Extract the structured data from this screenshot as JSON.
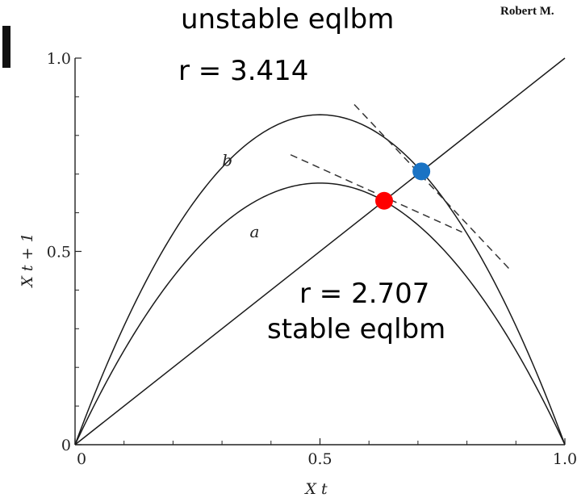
{
  "header": {
    "credit": "Robert M.",
    "annotation_unstable_label": "unstable eqlbm",
    "annotation_unstable_r": "r = 3.414",
    "annotation_stable_r": "r = 2.707",
    "annotation_stable_label": "stable eqlbm"
  },
  "chart_data": {
    "type": "line",
    "title": "",
    "xlabel": "X t",
    "ylabel": "X t + 1",
    "xlim": [
      0,
      1
    ],
    "ylim": [
      0,
      1
    ],
    "x_ticks": [
      {
        "value": 0,
        "label": "0"
      },
      {
        "value": 0.5,
        "label": "0.5"
      },
      {
        "value": 1,
        "label": "1.0"
      }
    ],
    "y_ticks": [
      {
        "value": 0,
        "label": "0"
      },
      {
        "value": 0.5,
        "label": "0.5"
      },
      {
        "value": 1,
        "label": "1.0"
      }
    ],
    "grid": false,
    "series": [
      {
        "name": "a",
        "curve": "logistic",
        "r": 2.707
      },
      {
        "name": "b",
        "curve": "logistic",
        "r": 3.414
      },
      {
        "name": "",
        "curve": "identity",
        "x": [
          0,
          1
        ],
        "y": [
          0,
          1
        ]
      }
    ],
    "tangents": [
      {
        "series": "a",
        "x": [
          0.44,
          0.79
        ],
        "y": [
          0.75,
          0.55
        ]
      },
      {
        "series": "b",
        "x": [
          0.57,
          0.89
        ],
        "y": [
          0.88,
          0.45
        ]
      }
    ],
    "equilibria": [
      {
        "label": "stable eqlbm",
        "r": 2.707,
        "x": 0.631,
        "y": 0.631,
        "color": "#ff0000"
      },
      {
        "label": "unstable eqlbm",
        "r": 3.414,
        "x": 0.707,
        "y": 0.707,
        "color": "#1a73c4"
      }
    ]
  }
}
